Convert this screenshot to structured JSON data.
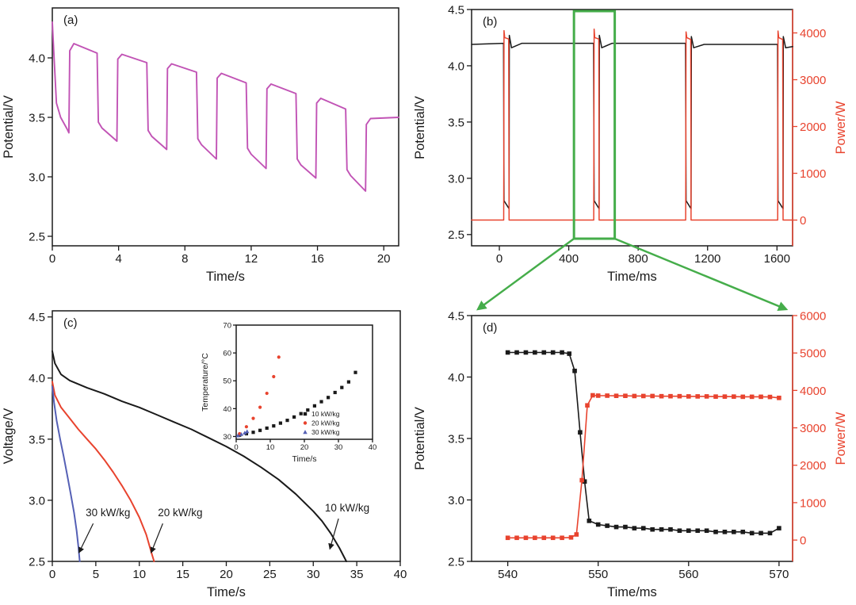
{
  "figure": {
    "background": "#ffffff"
  },
  "colors": {
    "black": "#1a1a1a",
    "red": "#e8432e",
    "magenta": "#c153b5",
    "blue": "#5560b5",
    "green": "#45ad4a"
  },
  "zoom_connector": {
    "color": "#45ad4a",
    "window_ms": [
      430,
      665
    ]
  },
  "chart_data": [
    {
      "id": "a",
      "type": "line",
      "panel_label": "(a)",
      "xlabel": "Time/s",
      "ylabel": "Potential/V",
      "xlim": [
        0,
        20.9
      ],
      "ylim": [
        2.42,
        4.42
      ],
      "xticks": [
        0,
        4,
        8,
        12,
        16,
        20
      ],
      "xtick_labels": [
        "0",
        "4",
        "8",
        "12",
        "16",
        "20"
      ],
      "yticks": [
        2.5,
        3.0,
        3.5,
        4.0
      ],
      "ytick_labels": [
        "2.5",
        "3.0",
        "3.5",
        "4.0"
      ],
      "series": [
        {
          "name": "charge-discharge-potential",
          "color": "#c153b5",
          "marker": "none",
          "x": [
            0,
            0.1,
            0.25,
            0.5,
            0.9,
            1.0,
            1.05,
            1.3,
            2.7,
            2.78,
            3.0,
            3.9,
            3.95,
            4.2,
            5.7,
            5.78,
            6.0,
            6.9,
            6.95,
            7.2,
            8.7,
            8.78,
            9.0,
            9.9,
            9.95,
            10.2,
            11.7,
            11.78,
            12.0,
            12.9,
            12.95,
            13.2,
            14.7,
            14.78,
            15.0,
            15.9,
            15.95,
            16.2,
            17.7,
            17.78,
            18.0,
            18.9,
            18.95,
            19.2,
            20.9
          ],
          "y": [
            4.3,
            4.02,
            3.62,
            3.5,
            3.4,
            3.37,
            4.06,
            4.12,
            4.04,
            3.46,
            3.41,
            3.3,
            3.99,
            4.03,
            3.96,
            3.39,
            3.34,
            3.23,
            3.91,
            3.95,
            3.88,
            3.32,
            3.27,
            3.15,
            3.83,
            3.87,
            3.79,
            3.24,
            3.19,
            3.07,
            3.74,
            3.78,
            3.7,
            3.15,
            3.1,
            2.99,
            3.62,
            3.66,
            3.57,
            3.06,
            3.01,
            2.88,
            3.44,
            3.49,
            3.5
          ]
        }
      ]
    },
    {
      "id": "b",
      "type": "line",
      "panel_label": "(b)",
      "xlabel": "Time/ms",
      "ylabel": "Potential/V",
      "y2label": "Power/W",
      "xlim": [
        -160,
        1690
      ],
      "ylim": [
        2.4,
        4.5
      ],
      "y2lim": [
        -550,
        4500
      ],
      "xticks": [
        0,
        400,
        800,
        1200,
        1600
      ],
      "xtick_labels": [
        "0",
        "400",
        "800",
        "1200",
        "1600"
      ],
      "yticks": [
        2.5,
        3.0,
        3.5,
        4.0,
        4.5
      ],
      "ytick_labels": [
        "2.5",
        "3.0",
        "3.5",
        "4.0",
        "4.5"
      ],
      "y2ticks": [
        0,
        1000,
        2000,
        3000,
        4000
      ],
      "y2tick_labels": [
        "0",
        "1000",
        "2000",
        "3000",
        "4000"
      ],
      "series": [
        {
          "name": "potential-pulses",
          "color": "#1a1a1a",
          "marker": "none",
          "axis": "left",
          "x": [
            -160,
            24,
            27,
            56,
            57.5,
            70,
            130,
            543,
            546,
            575,
            576.5,
            590,
            650,
            1073,
            1076,
            1105,
            1106.5,
            1120,
            1180,
            1603,
            1606,
            1635,
            1636.5,
            1650,
            1690
          ],
          "y": [
            4.19,
            4.2,
            2.8,
            2.73,
            4.27,
            4.16,
            4.2,
            4.2,
            2.8,
            2.73,
            4.27,
            4.16,
            4.2,
            4.2,
            2.8,
            2.73,
            4.26,
            4.16,
            4.19,
            4.19,
            2.8,
            2.73,
            4.26,
            4.16,
            4.17
          ]
        },
        {
          "name": "power-pulses",
          "color": "#e8432e",
          "marker": "none",
          "axis": "right",
          "x": [
            -160,
            25,
            27,
            31,
            54,
            56,
            544,
            546,
            550,
            573,
            575,
            1074,
            1076,
            1080,
            1103,
            1105,
            1604,
            1606,
            1610,
            1633,
            1635,
            1690
          ],
          "y": [
            0,
            0,
            4050,
            3900,
            3870,
            0,
            0,
            4080,
            3900,
            3870,
            0,
            0,
            4020,
            3900,
            3860,
            0,
            0,
            4040,
            3900,
            3860,
            0,
            0
          ]
        }
      ]
    },
    {
      "id": "c",
      "type": "line",
      "panel_label": "(c)",
      "xlabel": "Time/s",
      "ylabel": "Voltage/V",
      "xlim": [
        0,
        40
      ],
      "ylim": [
        2.5,
        4.55
      ],
      "xticks": [
        0,
        5,
        10,
        15,
        20,
        25,
        30,
        35,
        40
      ],
      "xtick_labels": [
        "0",
        "5",
        "10",
        "15",
        "20",
        "25",
        "30",
        "35",
        "40"
      ],
      "yticks": [
        2.5,
        3.0,
        3.5,
        4.0,
        4.5
      ],
      "ytick_labels": [
        "2.5",
        "3.0",
        "3.5",
        "4.0",
        "4.5"
      ],
      "series": [
        {
          "name": "discharge-10kWkg",
          "color": "#1a1a1a",
          "marker": "none",
          "x": [
            0,
            0.3,
            1,
            2,
            4,
            6,
            8,
            10,
            12,
            14,
            16,
            18,
            20,
            22,
            24,
            26,
            28,
            29,
            30,
            31,
            32,
            33,
            33.8
          ],
          "y": [
            4.22,
            4.12,
            4.03,
            3.98,
            3.92,
            3.87,
            3.81,
            3.76,
            3.7,
            3.64,
            3.58,
            3.51,
            3.44,
            3.36,
            3.27,
            3.17,
            3.05,
            2.98,
            2.91,
            2.83,
            2.73,
            2.61,
            2.5
          ]
        },
        {
          "name": "discharge-20kWkg",
          "color": "#e8432e",
          "marker": "none",
          "x": [
            0,
            0.3,
            1,
            2,
            3,
            4,
            5,
            6,
            7,
            8,
            9,
            10,
            10.8,
            11.4,
            11.7
          ],
          "y": [
            3.97,
            3.86,
            3.76,
            3.67,
            3.58,
            3.5,
            3.42,
            3.33,
            3.23,
            3.12,
            3.0,
            2.86,
            2.72,
            2.57,
            2.5
          ]
        },
        {
          "name": "discharge-30kWkg",
          "color": "#5560b5",
          "marker": "none",
          "x": [
            0,
            0.2,
            0.5,
            0.9,
            1.3,
            1.7,
            2.1,
            2.5,
            2.8,
            3.0,
            3.15
          ],
          "y": [
            3.93,
            3.8,
            3.65,
            3.5,
            3.36,
            3.21,
            3.06,
            2.9,
            2.75,
            2.62,
            2.5
          ]
        }
      ],
      "annotations": [
        {
          "text": "30 kW/kg",
          "tx": 6.4,
          "ty": 2.87,
          "x1": 4.7,
          "y1": 2.81,
          "x2": 3.05,
          "y2": 2.57
        },
        {
          "text": "20 kW/kg",
          "tx": 14.7,
          "ty": 2.87,
          "x1": 12.7,
          "y1": 2.81,
          "x2": 11.35,
          "y2": 2.57
        },
        {
          "text": "10 kW/kg",
          "tx": 33.9,
          "ty": 2.91,
          "x1": 32.9,
          "y1": 2.85,
          "x2": 31.9,
          "y2": 2.6
        }
      ]
    },
    {
      "id": "c_inset",
      "type": "scatter",
      "xlabel": "Time/s",
      "ylabel": "Temperature/°C",
      "xlim": [
        0,
        40
      ],
      "ylim": [
        29,
        70
      ],
      "xticks": [
        0,
        10,
        20,
        30,
        40
      ],
      "xtick_labels": [
        "0",
        "10",
        "20",
        "30",
        "40"
      ],
      "yticks": [
        30,
        40,
        50,
        60,
        70
      ],
      "ytick_labels": [
        "30",
        "40",
        "50",
        "60",
        "70"
      ],
      "series": [
        {
          "name": "10 kW/kg",
          "color": "#1a1a1a",
          "marker": "square",
          "line": false,
          "x": [
            1,
            3,
            5,
            7,
            9,
            11,
            13,
            15,
            17,
            19,
            21,
            23,
            25,
            27,
            29,
            31,
            33,
            35
          ],
          "y": [
            30.5,
            31,
            31.5,
            32.2,
            33,
            33.8,
            34.8,
            35.8,
            37,
            38.2,
            39.5,
            41,
            42.5,
            44,
            45.8,
            47.6,
            49.6,
            53
          ]
        },
        {
          "name": "20 kW/kg",
          "color": "#e8432e",
          "marker": "circle",
          "line": false,
          "x": [
            1,
            3,
            5,
            7,
            9,
            11,
            12.5
          ],
          "y": [
            31,
            33.5,
            36.5,
            40.5,
            45.5,
            51.5,
            58.5
          ]
        },
        {
          "name": "30 kW/kg",
          "color": "#5560b5",
          "marker": "triangle",
          "line": false,
          "x": [
            0.5,
            1.5,
            2.5,
            3.2
          ],
          "y": [
            30.3,
            30.8,
            31.3,
            31.8
          ]
        }
      ],
      "legend": [
        "10 kW/kg",
        "20 kW/kg",
        "30 kW/kg"
      ]
    },
    {
      "id": "d",
      "type": "line",
      "panel_label": "(d)",
      "xlabel": "Time/ms",
      "ylabel": "Potential/V",
      "y2label": "Power/W",
      "xlim": [
        536,
        571.5
      ],
      "ylim": [
        2.5,
        4.5
      ],
      "y2lim": [
        -570,
        6000
      ],
      "xticks": [
        540,
        550,
        560,
        570
      ],
      "xtick_labels": [
        "540",
        "550",
        "560",
        "570"
      ],
      "yticks": [
        2.5,
        3.0,
        3.5,
        4.0,
        4.5
      ],
      "ytick_labels": [
        "2.5",
        "3.0",
        "3.5",
        "4.0",
        "4.5"
      ],
      "y2ticks": [
        0,
        1000,
        2000,
        3000,
        4000,
        5000,
        6000
      ],
      "y2tick_labels": [
        "0",
        "1000",
        "2000",
        "3000",
        "4000",
        "5000",
        "6000"
      ],
      "series": [
        {
          "name": "potential-zoom",
          "color": "#1a1a1a",
          "marker": "square",
          "axis": "left",
          "x": [
            540,
            541,
            542,
            543,
            544,
            545,
            546,
            546.8,
            547.4,
            548,
            548.5,
            549,
            550,
            551,
            552,
            553,
            554,
            555,
            556,
            557,
            558,
            559,
            560,
            561,
            562,
            563,
            564,
            565,
            566,
            567,
            568,
            569,
            570
          ],
          "y": [
            4.2,
            4.2,
            4.2,
            4.2,
            4.2,
            4.2,
            4.2,
            4.19,
            4.05,
            3.55,
            3.15,
            2.83,
            2.8,
            2.79,
            2.78,
            2.78,
            2.77,
            2.77,
            2.76,
            2.76,
            2.76,
            2.75,
            2.75,
            2.75,
            2.75,
            2.74,
            2.74,
            2.74,
            2.74,
            2.73,
            2.73,
            2.73,
            2.77
          ]
        },
        {
          "name": "power-zoom",
          "color": "#e8432e",
          "marker": "square",
          "axis": "right",
          "x": [
            540,
            541,
            542,
            543,
            544,
            545,
            546,
            547,
            547.6,
            548.2,
            548.8,
            549.4,
            550,
            551,
            552,
            553,
            554,
            555,
            556,
            557,
            558,
            559,
            560,
            561,
            562,
            563,
            564,
            565,
            566,
            567,
            568,
            569,
            570
          ],
          "y": [
            60,
            60,
            60,
            60,
            60,
            60,
            60,
            70,
            150,
            1600,
            3600,
            3870,
            3860,
            3860,
            3855,
            3855,
            3850,
            3850,
            3850,
            3845,
            3845,
            3845,
            3840,
            3840,
            3840,
            3835,
            3835,
            3835,
            3830,
            3830,
            3830,
            3825,
            3800
          ]
        }
      ]
    }
  ]
}
